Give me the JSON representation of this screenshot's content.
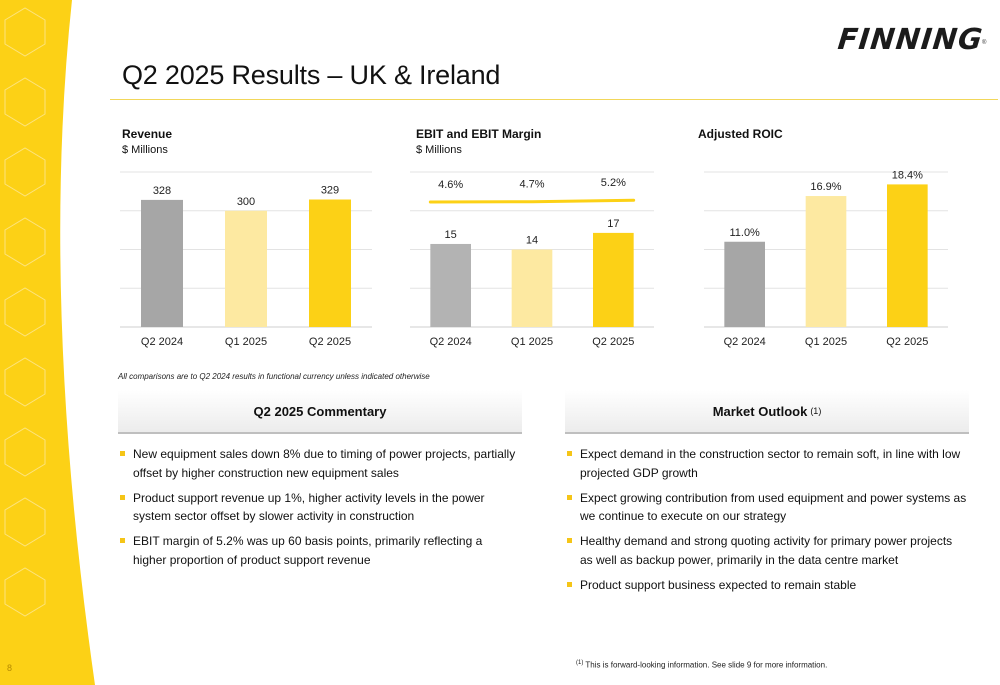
{
  "brand": {
    "logo_text": "FINNING",
    "reg_mark": "®",
    "accent": "#fcd116"
  },
  "page": {
    "title": "Q2 2025 Results – UK & Ireland",
    "number": "8"
  },
  "chart_data": [
    {
      "type": "bar",
      "title": "Revenue",
      "subtitle": "$ Millions",
      "categories": [
        "Q2 2024",
        "Q1 2025",
        "Q2 2025"
      ],
      "values": [
        328,
        300,
        329
      ],
      "value_labels": [
        "328",
        "300",
        "329"
      ],
      "colors": [
        "#a6a6a6",
        "#fde9a1",
        "#fcd116"
      ],
      "ylim": [
        0,
        400
      ],
      "grid": true
    },
    {
      "type": "bar",
      "title": "EBIT and EBIT Margin",
      "subtitle": "$ Millions",
      "categories": [
        "Q2 2024",
        "Q1 2025",
        "Q2 2025"
      ],
      "values": [
        15,
        14,
        17
      ],
      "value_labels": [
        "15",
        "14",
        "17"
      ],
      "colors": [
        "#b3b3b3",
        "#fde9a1",
        "#fcd116"
      ],
      "ylim": [
        0,
        28
      ],
      "grid": true,
      "line_series": {
        "values": [
          4.6,
          4.7,
          5.2
        ],
        "labels": [
          "4.6%",
          "4.7%",
          "5.2%"
        ],
        "color": "#fcd116"
      }
    },
    {
      "type": "bar",
      "title": "Adjusted ROIC",
      "subtitle": "",
      "categories": [
        "Q2 2024",
        "Q1 2025",
        "Q2 2025"
      ],
      "values": [
        11.0,
        16.9,
        18.4
      ],
      "value_labels": [
        "11.0%",
        "16.9%",
        "18.4%"
      ],
      "colors": [
        "#a6a6a6",
        "#fde9a1",
        "#fcd116"
      ],
      "ylim": [
        0,
        20
      ],
      "grid": true
    }
  ],
  "comparison_note": "All comparisons are to Q2 2024 results in functional currency unless indicated otherwise",
  "commentary": {
    "header": "Q2 2025 Commentary",
    "bullets": [
      "New equipment sales down 8% due to timing of power projects, partially offset by higher construction new equipment sales",
      "Product support revenue up 1%, higher activity levels in the power system sector offset by slower activity in construction",
      "EBIT margin of 5.2% was up 60 basis points, primarily reflecting a higher proportion of product support revenue"
    ]
  },
  "outlook": {
    "header": "Market Outlook",
    "header_sup": "(1)",
    "bullets": [
      "Expect demand in the construction sector to remain soft, in line with low projected GDP growth",
      "Expect growing contribution from used equipment and power systems as we continue to execute on our strategy",
      "Healthy demand and strong quoting activity for primary power projects as well as backup power, primarily in the data centre market",
      "Product support business expected to remain stable"
    ]
  },
  "footnote": {
    "sup": "(1)",
    "text": "This is forward-looking information. See slide 9 for more information."
  }
}
